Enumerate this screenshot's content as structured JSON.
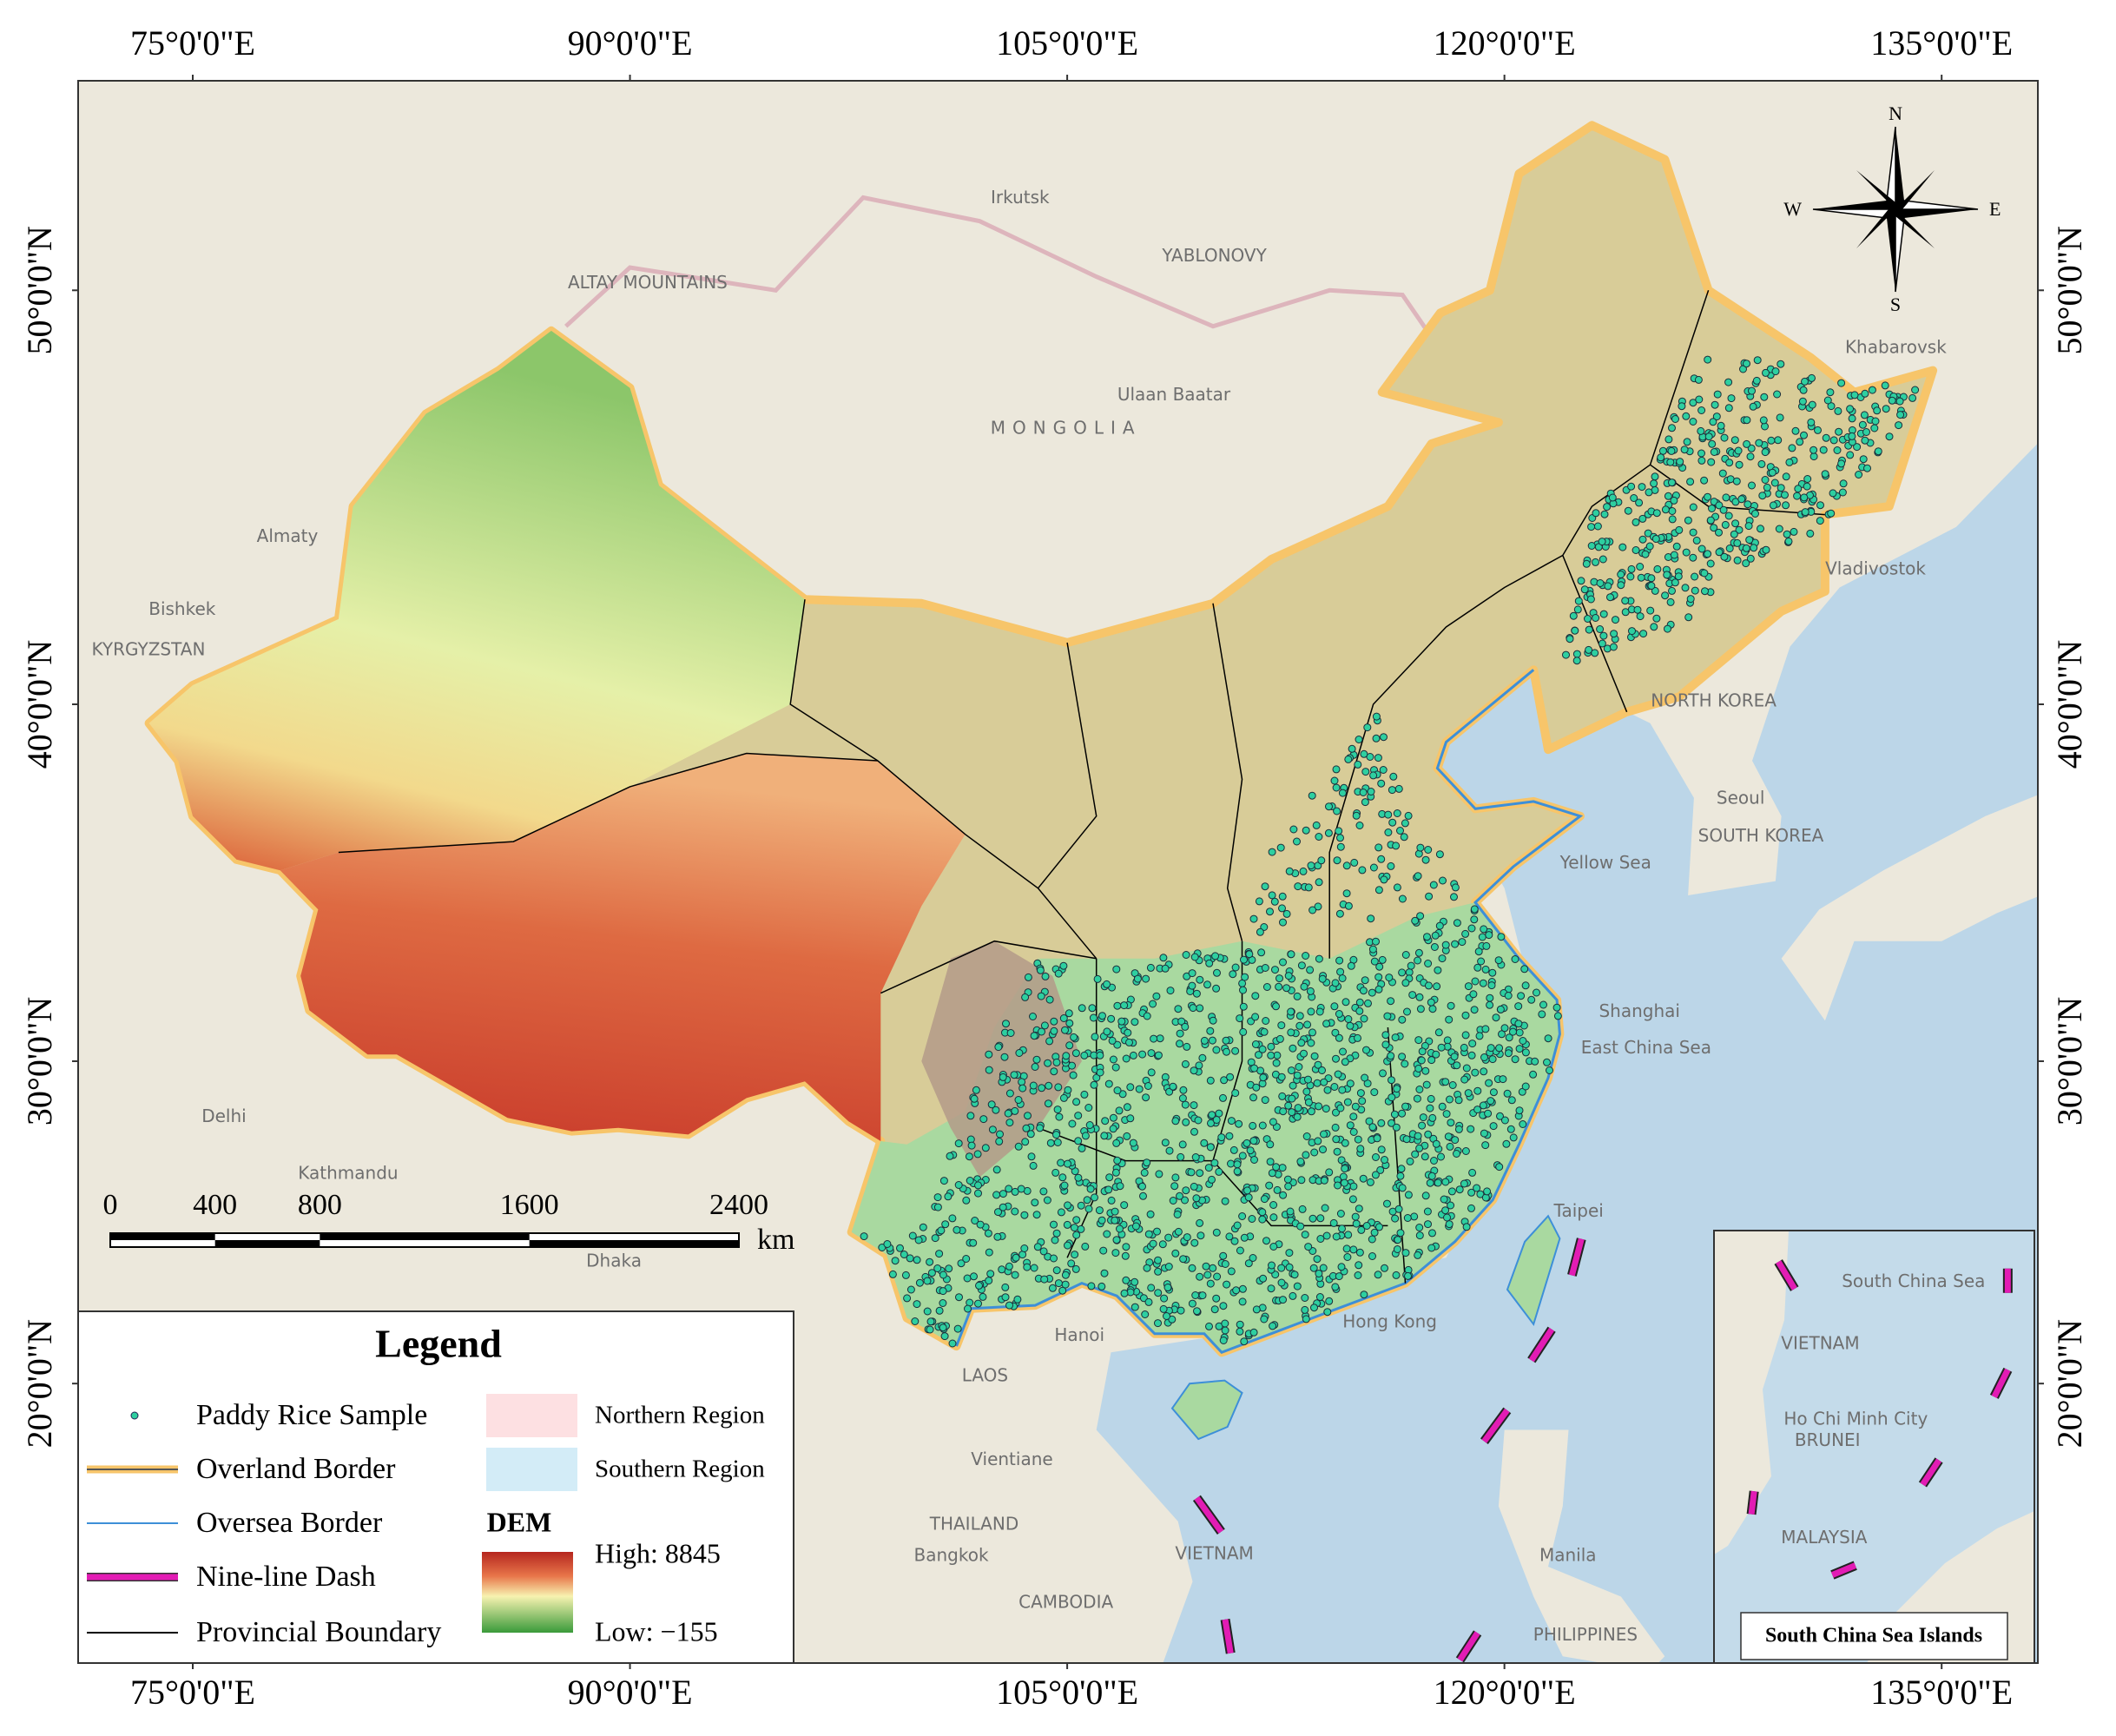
{
  "map": {
    "lon_ticks": [
      {
        "value": 75,
        "label": "75°0'0\"E"
      },
      {
        "value": 90,
        "label": "90°0'0\"E"
      },
      {
        "value": 105,
        "label": "105°0'0\"E"
      },
      {
        "value": 120,
        "label": "120°0'0\"E"
      },
      {
        "value": 135,
        "label": "135°0'0\"E"
      }
    ],
    "lat_ticks": [
      {
        "value": 50,
        "label": "50°0'0\"N"
      },
      {
        "value": 40,
        "label": "40°0'0\"N"
      },
      {
        "value": 30,
        "label": "30°0'0\"N"
      },
      {
        "value": 20,
        "label": "20°0'0\"N"
      }
    ],
    "place_labels": [
      "MONGOLIA",
      "Irkutsk",
      "Ulaan Baatar",
      "Almaty",
      "Bishkek",
      "KYRGYZSTAN",
      "Delhi",
      "Kathmandu",
      "Dhaka",
      "LAOS",
      "THAILAND",
      "VIETNAM",
      "CAMBODIA",
      "PHILIPPINES",
      "Hanoi",
      "Bangkok",
      "Vientiane",
      "Manila",
      "Shanghai",
      "Taipei",
      "Hong Kong",
      "Yellow Sea",
      "East China Sea",
      "NORTH KOREA",
      "SOUTH KOREA",
      "Seoul",
      "Vladivostok",
      "Khabarovsk",
      "YABLONOVY",
      "ALTAY MOUNTAINS"
    ]
  },
  "compass": {
    "n": "N",
    "s": "S",
    "e": "E",
    "w": "W"
  },
  "scale_bar": {
    "ticks": [
      0,
      400,
      800,
      1600,
      2400
    ],
    "unit": "km"
  },
  "legend": {
    "title": "Legend",
    "items": [
      "Paddy Rice Sample",
      "Overland Border",
      "Oversea Border",
      "Nine-line Dash",
      "Provincial Boundary"
    ],
    "regions": [
      "Northern Region",
      "Southern Region"
    ],
    "dem": {
      "title": "DEM",
      "high": "High: 8845",
      "low": "Low: −155"
    }
  },
  "inset": {
    "title": "South China Sea Islands",
    "labels": [
      "VIETNAM",
      "South China Sea",
      "Ho Chi Minh City",
      "BRUNEI",
      "MALAYSIA"
    ]
  }
}
